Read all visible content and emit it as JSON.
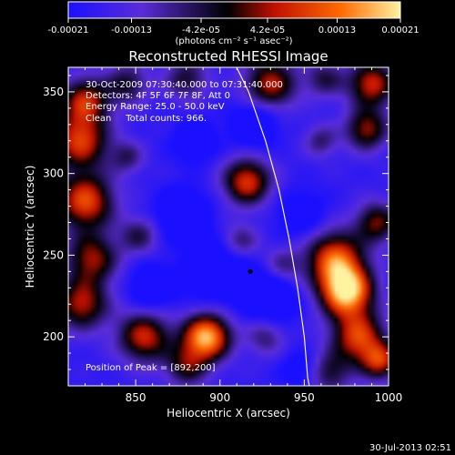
{
  "chart_data": {
    "type": "heatmap",
    "title": "Reconstructed RHESSI Image",
    "xlabel": "Heliocentric X (arcsec)",
    "ylabel": "Heliocentric Y (arcsec)",
    "xlim": [
      810,
      1000
    ],
    "ylim": [
      170,
      365
    ],
    "x_ticks": [
      850,
      900,
      950,
      1000
    ],
    "y_ticks": [
      200,
      250,
      300,
      350
    ],
    "colorbar": {
      "range": [
        -0.00021,
        0.00021
      ],
      "tick_values": [
        -0.00021,
        -0.00013,
        -4.2e-05,
        4.2e-05,
        0.00013,
        0.00021
      ],
      "tick_labels": [
        "-0.00021",
        "-0.00013",
        "-4.2e-05",
        "4.2e-05",
        "0.00013",
        "0.00021"
      ],
      "units": "(photons cm⁻² s⁻¹ asec⁻²)",
      "colors": [
        "#1a10ff",
        "#5a2dd8",
        "#000000",
        "#c01000",
        "#ff6a00",
        "#fff2a0"
      ]
    },
    "annotations": {
      "time_range": "30-Oct-2009 07:30:40.000 to 07:31:40.000",
      "detectors": "Detectors: 4F 5F 6F 7F 8F, Att 0",
      "energy_range": "Energy Range: 25.0 - 50.0 keV",
      "algorithm": "Clean     Total counts: 966.",
      "peak_label": "Position of Peak = [892,200]"
    },
    "peak": {
      "x": 892,
      "y": 200
    },
    "marker": {
      "x": 918,
      "y": 240
    },
    "limb": [
      [
        907,
        371
      ],
      [
        917,
        350
      ],
      [
        927,
        320
      ],
      [
        935,
        290
      ],
      [
        941,
        260
      ],
      [
        946,
        230
      ],
      [
        950,
        200
      ],
      [
        952,
        175
      ],
      [
        953,
        170
      ]
    ],
    "emission_sources": [
      {
        "x": 817,
        "y": 320,
        "amp": 1.6,
        "s": 12
      },
      {
        "x": 820,
        "y": 345,
        "amp": 1.4,
        "s": 10
      },
      {
        "x": 845,
        "y": 355,
        "amp": 0.9,
        "s": 9
      },
      {
        "x": 880,
        "y": 358,
        "amp": 0.9,
        "s": 9
      },
      {
        "x": 930,
        "y": 355,
        "amp": 1.4,
        "s": 11
      },
      {
        "x": 962,
        "y": 358,
        "amp": 0.8,
        "s": 8
      },
      {
        "x": 990,
        "y": 355,
        "amp": 1.5,
        "s": 10
      },
      {
        "x": 987,
        "y": 327,
        "amp": 1.3,
        "s": 9
      },
      {
        "x": 960,
        "y": 320,
        "amp": 0.7,
        "s": 7
      },
      {
        "x": 916,
        "y": 295,
        "amp": 1.6,
        "s": 10
      },
      {
        "x": 845,
        "y": 310,
        "amp": 0.7,
        "s": 7
      },
      {
        "x": 820,
        "y": 283,
        "amp": 1.7,
        "s": 12
      },
      {
        "x": 824,
        "y": 248,
        "amp": 1.3,
        "s": 11
      },
      {
        "x": 852,
        "y": 262,
        "amp": 0.8,
        "s": 8
      },
      {
        "x": 818,
        "y": 220,
        "amp": 1.4,
        "s": 11
      },
      {
        "x": 855,
        "y": 200,
        "amp": 1.5,
        "s": 11
      },
      {
        "x": 892,
        "y": 200,
        "amp": 2.2,
        "s": 10
      },
      {
        "x": 880,
        "y": 182,
        "amp": 1.0,
        "s": 9
      },
      {
        "x": 912,
        "y": 258,
        "amp": 0.8,
        "s": 8
      },
      {
        "x": 937,
        "y": 243,
        "amp": 0.7,
        "s": 8
      },
      {
        "x": 975,
        "y": 228,
        "amp": 2.3,
        "s": 11
      },
      {
        "x": 968,
        "y": 248,
        "amp": 1.7,
        "s": 12
      },
      {
        "x": 993,
        "y": 270,
        "amp": 1.2,
        "s": 9
      },
      {
        "x": 982,
        "y": 200,
        "amp": 1.6,
        "s": 11
      },
      {
        "x": 965,
        "y": 178,
        "amp": 0.9,
        "s": 9
      },
      {
        "x": 927,
        "y": 200,
        "amp": 0.7,
        "s": 8
      },
      {
        "x": 995,
        "y": 185,
        "amp": 1.4,
        "s": 8
      }
    ],
    "absorption_sources": [
      {
        "x": 878,
        "y": 275,
        "amp": 1.0,
        "s": 10
      },
      {
        "x": 900,
        "y": 240,
        "amp": 0.9,
        "s": 13
      },
      {
        "x": 930,
        "y": 225,
        "amp": 0.9,
        "s": 11
      },
      {
        "x": 920,
        "y": 330,
        "amp": 0.9,
        "s": 9
      },
      {
        "x": 885,
        "y": 320,
        "amp": 0.6,
        "s": 9
      },
      {
        "x": 948,
        "y": 275,
        "amp": 0.6,
        "s": 10
      },
      {
        "x": 860,
        "y": 230,
        "amp": 0.7,
        "s": 10
      },
      {
        "x": 948,
        "y": 180,
        "amp": 0.5,
        "s": 8
      }
    ]
  },
  "footer": {
    "timestamp": "30-Jul-2013 02:51"
  }
}
